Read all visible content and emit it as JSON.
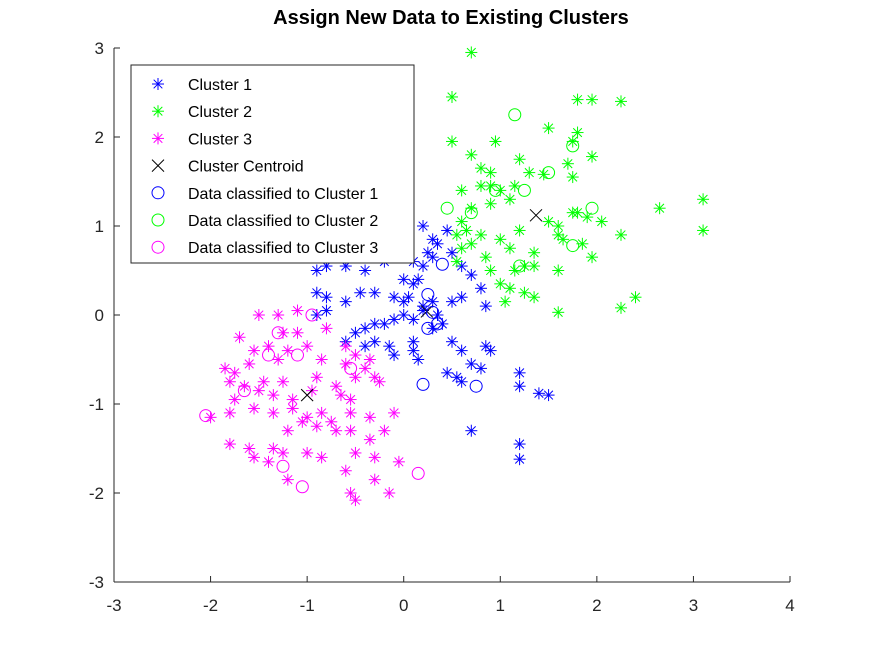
{
  "chart_data": {
    "type": "scatter",
    "title": "Assign New Data to Existing Clusters",
    "xlabel": "",
    "ylabel": "",
    "xlim": [
      -3,
      4
    ],
    "ylim": [
      -3,
      3
    ],
    "xticks": [
      "-3",
      "-2",
      "-1",
      "0",
      "1",
      "2",
      "3",
      "4"
    ],
    "yticks": [
      "3",
      "2",
      "1",
      "0",
      "-1",
      "-2",
      "-3"
    ],
    "grid": false,
    "legend_position": "top-left",
    "legend": [
      {
        "label": "Cluster 1",
        "marker": "asterisk",
        "color": "#0000ff"
      },
      {
        "label": "Cluster 2",
        "marker": "asterisk",
        "color": "#00ff00"
      },
      {
        "label": "Cluster 3",
        "marker": "asterisk",
        "color": "#ff00ff"
      },
      {
        "label": "Cluster Centroid",
        "marker": "x",
        "color": "#000000"
      },
      {
        "label": "Data classified to Cluster 1",
        "marker": "circle",
        "color": "#0000ff"
      },
      {
        "label": "Data classified to Cluster 2",
        "marker": "circle",
        "color": "#00ff00"
      },
      {
        "label": "Data classified to Cluster 3",
        "marker": "circle",
        "color": "#ff00ff"
      }
    ],
    "series": [
      {
        "name": "Cluster 1",
        "marker": "asterisk",
        "color": "#0000ff",
        "points": [
          [
            -0.5,
            1.3
          ],
          [
            -0.2,
            1.1
          ],
          [
            0.0,
            1.05
          ],
          [
            0.2,
            1.0
          ],
          [
            0.3,
            0.85
          ],
          [
            0.35,
            0.8
          ],
          [
            0.45,
            0.95
          ],
          [
            -0.3,
            0.75
          ],
          [
            -0.1,
            0.65
          ],
          [
            0.1,
            0.6
          ],
          [
            0.2,
            0.55
          ],
          [
            0.25,
            0.7
          ],
          [
            0.3,
            0.65
          ],
          [
            0.5,
            0.7
          ],
          [
            0.6,
            0.55
          ],
          [
            0.7,
            0.45
          ],
          [
            -0.9,
            0.5
          ],
          [
            -0.8,
            0.55
          ],
          [
            -0.6,
            0.55
          ],
          [
            -0.4,
            0.5
          ],
          [
            -0.2,
            0.6
          ],
          [
            0.0,
            0.4
          ],
          [
            0.1,
            0.35
          ],
          [
            0.15,
            0.4
          ],
          [
            -0.9,
            0.25
          ],
          [
            -0.8,
            0.2
          ],
          [
            -0.6,
            0.15
          ],
          [
            -0.45,
            0.25
          ],
          [
            -0.3,
            0.25
          ],
          [
            -0.1,
            0.2
          ],
          [
            0.0,
            0.15
          ],
          [
            0.05,
            0.2
          ],
          [
            0.2,
            0.1
          ],
          [
            0.3,
            0.15
          ],
          [
            0.5,
            0.15
          ],
          [
            0.6,
            0.2
          ],
          [
            0.8,
            0.3
          ],
          [
            0.85,
            0.1
          ],
          [
            -0.9,
            0.0
          ],
          [
            -0.8,
            0.05
          ],
          [
            -0.5,
            -0.2
          ],
          [
            -0.4,
            -0.15
          ],
          [
            -0.3,
            -0.1
          ],
          [
            -0.2,
            -0.1
          ],
          [
            -0.1,
            -0.05
          ],
          [
            0.0,
            0.0
          ],
          [
            0.1,
            -0.05
          ],
          [
            0.2,
            0.05
          ],
          [
            0.3,
            -0.15
          ],
          [
            0.35,
            0.0
          ],
          [
            0.4,
            -0.1
          ],
          [
            -0.6,
            -0.3
          ],
          [
            -0.4,
            -0.35
          ],
          [
            -0.3,
            -0.3
          ],
          [
            -0.15,
            -0.35
          ],
          [
            -0.1,
            -0.45
          ],
          [
            0.1,
            -0.4
          ],
          [
            0.15,
            -0.5
          ],
          [
            0.1,
            -0.3
          ],
          [
            0.5,
            -0.3
          ],
          [
            0.6,
            -0.4
          ],
          [
            0.7,
            -0.55
          ],
          [
            0.8,
            -0.6
          ],
          [
            0.85,
            -0.35
          ],
          [
            0.9,
            -0.4
          ],
          [
            0.45,
            -0.65
          ],
          [
            0.6,
            -0.75
          ],
          [
            0.55,
            -0.7
          ],
          [
            1.2,
            -0.65
          ],
          [
            1.2,
            -0.8
          ],
          [
            1.4,
            -0.88
          ],
          [
            1.5,
            -0.9
          ],
          [
            0.7,
            -1.3
          ],
          [
            1.2,
            -1.45
          ],
          [
            1.2,
            -1.62
          ]
        ]
      },
      {
        "name": "Cluster 2",
        "marker": "asterisk",
        "color": "#00ff00",
        "points": [
          [
            0.7,
            2.95
          ],
          [
            0.5,
            2.45
          ],
          [
            1.8,
            2.42
          ],
          [
            1.95,
            2.42
          ],
          [
            2.25,
            2.4
          ],
          [
            1.5,
            2.1
          ],
          [
            1.8,
            2.05
          ],
          [
            1.75,
            1.95
          ],
          [
            0.5,
            1.95
          ],
          [
            0.95,
            1.95
          ],
          [
            1.95,
            1.78
          ],
          [
            0.7,
            1.8
          ],
          [
            1.2,
            1.75
          ],
          [
            1.7,
            1.7
          ],
          [
            0.8,
            1.65
          ],
          [
            0.9,
            1.6
          ],
          [
            1.3,
            1.6
          ],
          [
            1.45,
            1.58
          ],
          [
            1.75,
            1.55
          ],
          [
            0.6,
            1.4
          ],
          [
            0.8,
            1.45
          ],
          [
            0.9,
            1.45
          ],
          [
            1.0,
            1.4
          ],
          [
            1.15,
            1.45
          ],
          [
            1.1,
            1.3
          ],
          [
            0.9,
            1.25
          ],
          [
            0.7,
            1.2
          ],
          [
            0.6,
            1.05
          ],
          [
            1.8,
            1.15
          ],
          [
            1.9,
            1.1
          ],
          [
            1.75,
            1.15
          ],
          [
            1.5,
            1.05
          ],
          [
            1.6,
            1.0
          ],
          [
            2.05,
            1.05
          ],
          [
            0.55,
            0.9
          ],
          [
            0.65,
            0.95
          ],
          [
            0.7,
            0.8
          ],
          [
            0.8,
            0.9
          ],
          [
            1.2,
            0.95
          ],
          [
            1.6,
            0.9
          ],
          [
            1.65,
            0.85
          ],
          [
            2.25,
            0.9
          ],
          [
            2.65,
            1.2
          ],
          [
            3.1,
            1.3
          ],
          [
            3.1,
            0.95
          ],
          [
            0.6,
            0.75
          ],
          [
            0.85,
            0.65
          ],
          [
            1.0,
            0.85
          ],
          [
            1.1,
            0.75
          ],
          [
            1.35,
            0.7
          ],
          [
            1.85,
            0.8
          ],
          [
            0.55,
            0.6
          ],
          [
            0.9,
            0.5
          ],
          [
            1.15,
            0.5
          ],
          [
            1.25,
            0.55
          ],
          [
            1.35,
            0.55
          ],
          [
            1.6,
            0.5
          ],
          [
            1.95,
            0.65
          ],
          [
            1.0,
            0.35
          ],
          [
            1.1,
            0.3
          ],
          [
            1.25,
            0.25
          ],
          [
            1.35,
            0.2
          ],
          [
            1.05,
            0.15
          ],
          [
            2.4,
            0.2
          ],
          [
            2.25,
            0.08
          ],
          [
            1.6,
            0.03
          ]
        ]
      },
      {
        "name": "Cluster 3",
        "marker": "asterisk",
        "color": "#ff00ff",
        "points": [
          [
            -1.5,
            0.0
          ],
          [
            -1.3,
            0.0
          ],
          [
            -1.1,
            0.05
          ],
          [
            -1.25,
            -0.2
          ],
          [
            -1.1,
            -0.2
          ],
          [
            -0.8,
            -0.15
          ],
          [
            -1.7,
            -0.25
          ],
          [
            -1.55,
            -0.4
          ],
          [
            -1.4,
            -0.35
          ],
          [
            -1.2,
            -0.4
          ],
          [
            -1.0,
            -0.35
          ],
          [
            -0.6,
            -0.35
          ],
          [
            -0.5,
            -0.45
          ],
          [
            -0.35,
            -0.5
          ],
          [
            -1.85,
            -0.6
          ],
          [
            -1.75,
            -0.65
          ],
          [
            -1.6,
            -0.55
          ],
          [
            -1.3,
            -0.5
          ],
          [
            -0.85,
            -0.5
          ],
          [
            -0.6,
            -0.55
          ],
          [
            -0.4,
            -0.6
          ],
          [
            -0.3,
            -0.7
          ],
          [
            -1.8,
            -0.75
          ],
          [
            -1.65,
            -0.8
          ],
          [
            -1.45,
            -0.75
          ],
          [
            -1.25,
            -0.75
          ],
          [
            -0.9,
            -0.7
          ],
          [
            -0.7,
            -0.8
          ],
          [
            -0.5,
            -0.7
          ],
          [
            -0.25,
            -0.75
          ],
          [
            -1.75,
            -0.95
          ],
          [
            -1.5,
            -0.85
          ],
          [
            -1.35,
            -0.9
          ],
          [
            -1.15,
            -0.95
          ],
          [
            -0.95,
            -0.85
          ],
          [
            -0.65,
            -0.9
          ],
          [
            -0.55,
            -0.95
          ],
          [
            -1.8,
            -1.1
          ],
          [
            -1.55,
            -1.05
          ],
          [
            -1.35,
            -1.1
          ],
          [
            -1.15,
            -1.05
          ],
          [
            -1.0,
            -1.15
          ],
          [
            -0.85,
            -1.1
          ],
          [
            -0.75,
            -1.2
          ],
          [
            -0.55,
            -1.1
          ],
          [
            -0.35,
            -1.15
          ],
          [
            -0.1,
            -1.1
          ],
          [
            -2.0,
            -1.15
          ],
          [
            -1.8,
            -1.45
          ],
          [
            -1.6,
            -1.5
          ],
          [
            -1.35,
            -1.5
          ],
          [
            -1.2,
            -1.3
          ],
          [
            -1.05,
            -1.2
          ],
          [
            -0.9,
            -1.25
          ],
          [
            -0.7,
            -1.3
          ],
          [
            -0.55,
            -1.3
          ],
          [
            -0.35,
            -1.4
          ],
          [
            -0.2,
            -1.3
          ],
          [
            -1.55,
            -1.6
          ],
          [
            -1.4,
            -1.65
          ],
          [
            -1.25,
            -1.55
          ],
          [
            -1.0,
            -1.55
          ],
          [
            -0.85,
            -1.6
          ],
          [
            -0.6,
            -1.75
          ],
          [
            -0.5,
            -1.55
          ],
          [
            -0.3,
            -1.6
          ],
          [
            -0.05,
            -1.65
          ],
          [
            -1.2,
            -1.85
          ],
          [
            -0.3,
            -1.85
          ],
          [
            -0.55,
            -2.0
          ],
          [
            -0.5,
            -2.08
          ],
          [
            -0.15,
            -2.0
          ]
        ]
      },
      {
        "name": "Cluster Centroid",
        "marker": "x",
        "color": "#000000",
        "points": [
          [
            1.37,
            1.12
          ],
          [
            0.24,
            0.04
          ],
          [
            -1.0,
            -0.9
          ]
        ]
      },
      {
        "name": "Data classified to Cluster 1",
        "marker": "circle",
        "color": "#0000ff",
        "points": [
          [
            0.4,
            0.57
          ],
          [
            0.25,
            0.23
          ],
          [
            0.3,
            0.03
          ],
          [
            0.25,
            -0.15
          ],
          [
            0.35,
            -0.1
          ],
          [
            0.75,
            -0.8
          ],
          [
            0.2,
            -0.78
          ]
        ]
      },
      {
        "name": "Data classified to Cluster 2",
        "marker": "circle",
        "color": "#00ff00",
        "points": [
          [
            1.15,
            2.25
          ],
          [
            1.75,
            1.9
          ],
          [
            1.5,
            1.6
          ],
          [
            0.95,
            1.4
          ],
          [
            1.25,
            1.4
          ],
          [
            0.45,
            1.2
          ],
          [
            0.7,
            1.15
          ],
          [
            1.95,
            1.2
          ],
          [
            1.75,
            0.78
          ],
          [
            1.2,
            0.55
          ]
        ]
      },
      {
        "name": "Data classified to Cluster 3",
        "marker": "circle",
        "color": "#ff00ff",
        "points": [
          [
            -1.3,
            -0.2
          ],
          [
            -0.95,
            0.0
          ],
          [
            -1.1,
            -0.45
          ],
          [
            -1.4,
            -0.45
          ],
          [
            -1.65,
            -0.85
          ],
          [
            -2.05,
            -1.13
          ],
          [
            -1.25,
            -1.7
          ],
          [
            -0.55,
            -0.6
          ],
          [
            0.15,
            -1.78
          ],
          [
            -1.05,
            -1.93
          ]
        ]
      }
    ]
  }
}
